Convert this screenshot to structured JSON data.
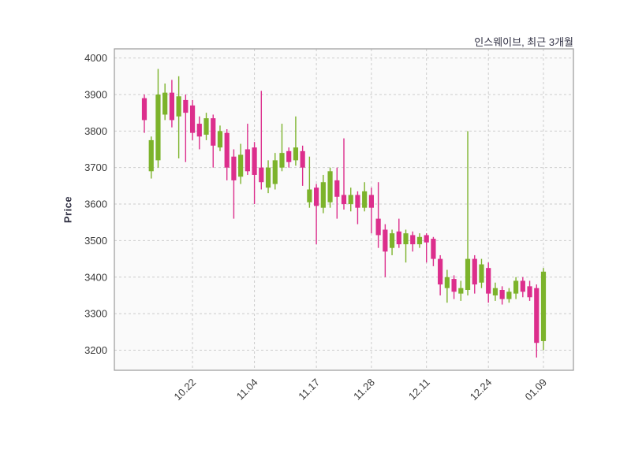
{
  "chart_data": {
    "type": "candlestick",
    "title": "인스웨이브, 최근 3개월",
    "ylabel": "Price",
    "xlabel": "",
    "grid": true,
    "legend_position": "none",
    "ylim": [
      3145,
      4025
    ],
    "y_ticks": [
      3200,
      3300,
      3400,
      3500,
      3600,
      3700,
      3800,
      3900,
      4000
    ],
    "x_tick_labels": [
      {
        "index": 7,
        "label": "10.22"
      },
      {
        "index": 16,
        "label": "11.04"
      },
      {
        "index": 25,
        "label": "11.17"
      },
      {
        "index": 33,
        "label": "11.28"
      },
      {
        "index": 41,
        "label": "12.11"
      },
      {
        "index": 50,
        "label": "12.24"
      },
      {
        "index": 58,
        "label": "01.09"
      }
    ],
    "colors": {
      "up": "#7cb32b",
      "down": "#dc2e8c",
      "grid": "#cccccc",
      "plot_bg": "#fafafa",
      "border": "#999999",
      "tick_text": "#3a3a3a",
      "title_text": "#2f2f42"
    },
    "candle_format": [
      "open",
      "high",
      "low",
      "close"
    ],
    "candles": [
      [
        3890,
        3900,
        3795,
        3830
      ],
      [
        3690,
        3785,
        3670,
        3775
      ],
      [
        3720,
        3970,
        3700,
        3900
      ],
      [
        3845,
        3930,
        3830,
        3905
      ],
      [
        3905,
        3940,
        3810,
        3830
      ],
      [
        3840,
        3950,
        3725,
        3895
      ],
      [
        3885,
        3900,
        3715,
        3850
      ],
      [
        3870,
        3885,
        3775,
        3795
      ],
      [
        3820,
        3840,
        3750,
        3785
      ],
      [
        3790,
        3850,
        3775,
        3835
      ],
      [
        3835,
        3845,
        3700,
        3760
      ],
      [
        3755,
        3815,
        3745,
        3800
      ],
      [
        3795,
        3805,
        3665,
        3700
      ],
      [
        3730,
        3750,
        3560,
        3665
      ],
      [
        3675,
        3765,
        3655,
        3735
      ],
      [
        3750,
        3820,
        3680,
        3690
      ],
      [
        3755,
        3770,
        3600,
        3680
      ],
      [
        3700,
        3910,
        3640,
        3660
      ],
      [
        3645,
        3720,
        3630,
        3700
      ],
      [
        3655,
        3740,
        3640,
        3720
      ],
      [
        3700,
        3820,
        3690,
        3740
      ],
      [
        3745,
        3755,
        3700,
        3715
      ],
      [
        3720,
        3840,
        3705,
        3755
      ],
      [
        3745,
        3760,
        3650,
        3700
      ],
      [
        3605,
        3730,
        3590,
        3640
      ],
      [
        3645,
        3655,
        3490,
        3595
      ],
      [
        3590,
        3680,
        3575,
        3660
      ],
      [
        3605,
        3700,
        3590,
        3690
      ],
      [
        3665,
        3700,
        3560,
        3620
      ],
      [
        3625,
        3780,
        3585,
        3600
      ],
      [
        3600,
        3645,
        3580,
        3625
      ],
      [
        3625,
        3635,
        3545,
        3590
      ],
      [
        3590,
        3660,
        3580,
        3635
      ],
      [
        3625,
        3645,
        3520,
        3590
      ],
      [
        3560,
        3660,
        3480,
        3515
      ],
      [
        3530,
        3545,
        3400,
        3470
      ],
      [
        3480,
        3530,
        3460,
        3520
      ],
      [
        3525,
        3560,
        3480,
        3490
      ],
      [
        3490,
        3530,
        3440,
        3520
      ],
      [
        3515,
        3525,
        3470,
        3490
      ],
      [
        3490,
        3520,
        3480,
        3510
      ],
      [
        3515,
        3520,
        3440,
        3495
      ],
      [
        3505,
        3510,
        3430,
        3450
      ],
      [
        3450,
        3460,
        3350,
        3380
      ],
      [
        3370,
        3420,
        3330,
        3400
      ],
      [
        3395,
        3405,
        3340,
        3360
      ],
      [
        3355,
        3390,
        3335,
        3370
      ],
      [
        3365,
        3800,
        3350,
        3450
      ],
      [
        3450,
        3460,
        3355,
        3380
      ],
      [
        3385,
        3450,
        3370,
        3435
      ],
      [
        3425,
        3440,
        3330,
        3355
      ],
      [
        3350,
        3385,
        3335,
        3370
      ],
      [
        3365,
        3375,
        3325,
        3340
      ],
      [
        3340,
        3370,
        3330,
        3360
      ],
      [
        3355,
        3400,
        3340,
        3390
      ],
      [
        3390,
        3400,
        3345,
        3360
      ],
      [
        3375,
        3390,
        3335,
        3345
      ],
      [
        3370,
        3380,
        3180,
        3220
      ],
      [
        3225,
        3425,
        3200,
        3415
      ]
    ]
  }
}
